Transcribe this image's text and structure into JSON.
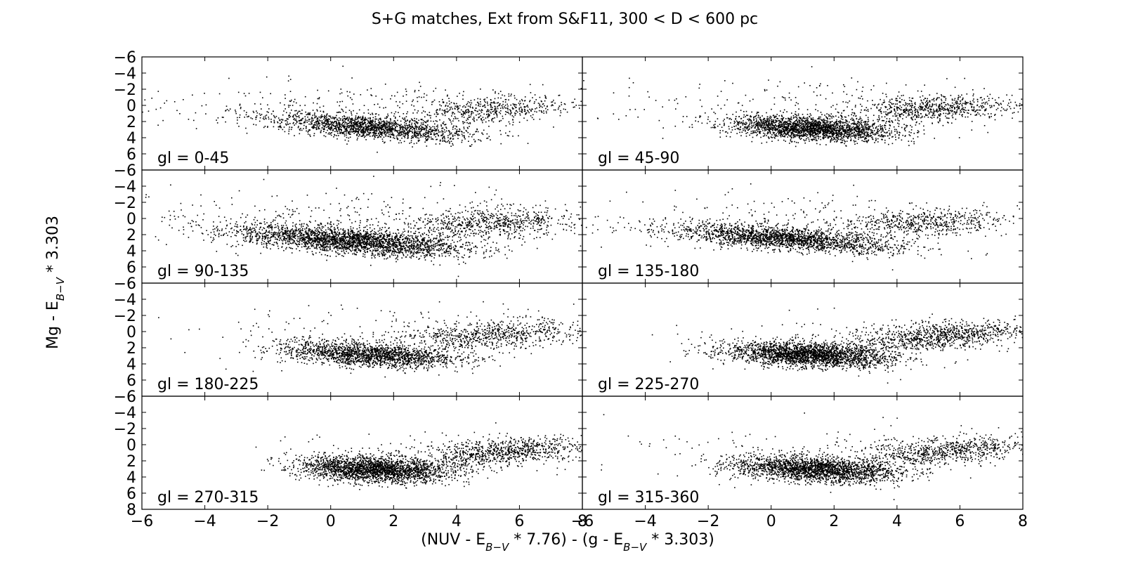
{
  "chart_data": {
    "type": "scatter",
    "title": "S+G matches, Ext from S&F11, 300 < D < 600 pc",
    "xlabel": {
      "a": "(NUV - E",
      "asub": "B−V",
      "b": " * 7.76) - (g - E",
      "bsub": "B−V",
      "c": " * 3.303)"
    },
    "ylabel": {
      "a": "Mg - E",
      "asub": "B−V",
      "b": " * 3.303"
    },
    "xlim": [
      -6,
      8
    ],
    "ylim": [
      8,
      -6
    ],
    "y_inverted": true,
    "xticks": [
      "−6",
      "−4",
      "−2",
      "0",
      "2",
      "4",
      "6",
      "8"
    ],
    "xticks_right": [
      "−6",
      "−4",
      "−2",
      "0",
      "2",
      "4",
      "6",
      "8"
    ],
    "yticks": [
      "−6",
      "−4",
      "−2",
      "0",
      "2",
      "4",
      "6"
    ],
    "yticks_bottom": [
      "−6",
      "−4",
      "−2",
      "0",
      "2",
      "4",
      "6",
      "8"
    ],
    "grid": false,
    "marker_color": "#000000",
    "panels": [
      {
        "label": "gl = 0-45",
        "clusters": [
          {
            "n": 1700,
            "cx": 1.2,
            "cy": 2.6,
            "sx": 1.6,
            "sy": 0.85,
            "rho": 0.55
          },
          {
            "n": 500,
            "cx": 5.0,
            "cy": 0.5,
            "sx": 1.3,
            "sy": 0.9,
            "rho": -0.2
          },
          {
            "n": 250,
            "cx": 0.0,
            "cy": 0.0,
            "sx": 4.0,
            "sy": 1.6,
            "rho": 0.0
          }
        ]
      },
      {
        "label": "gl = 45-90",
        "clusters": [
          {
            "n": 2200,
            "cx": 1.3,
            "cy": 2.8,
            "sx": 1.3,
            "sy": 0.75,
            "rho": 0.35
          },
          {
            "n": 650,
            "cx": 5.2,
            "cy": 0.3,
            "sx": 1.3,
            "sy": 0.8,
            "rho": -0.35
          },
          {
            "n": 250,
            "cx": 1.0,
            "cy": 0.0,
            "sx": 4.0,
            "sy": 1.7,
            "rho": 0.0
          }
        ]
      },
      {
        "label": "gl = 90-135",
        "clusters": [
          {
            "n": 2600,
            "cx": 0.6,
            "cy": 2.7,
            "sx": 1.8,
            "sy": 0.95,
            "rho": 0.55
          },
          {
            "n": 700,
            "cx": 5.0,
            "cy": 0.5,
            "sx": 1.4,
            "sy": 0.95,
            "rho": -0.25
          },
          {
            "n": 300,
            "cx": 0.5,
            "cy": 0.0,
            "sx": 4.2,
            "sy": 1.8,
            "rho": 0.0
          }
        ]
      },
      {
        "label": "gl = 135-180",
        "clusters": [
          {
            "n": 2000,
            "cx": 0.4,
            "cy": 2.4,
            "sx": 1.8,
            "sy": 0.85,
            "rho": 0.6
          },
          {
            "n": 550,
            "cx": 4.8,
            "cy": 0.5,
            "sx": 1.3,
            "sy": 0.8,
            "rho": -0.2
          },
          {
            "n": 250,
            "cx": 0.5,
            "cy": 0.0,
            "sx": 4.0,
            "sy": 1.8,
            "rho": 0.0
          }
        ]
      },
      {
        "label": "gl = 180-225",
        "clusters": [
          {
            "n": 1800,
            "cx": 1.2,
            "cy": 2.8,
            "sx": 1.4,
            "sy": 0.8,
            "rho": 0.4
          },
          {
            "n": 650,
            "cx": 5.2,
            "cy": 0.3,
            "sx": 1.4,
            "sy": 0.9,
            "rho": -0.3
          },
          {
            "n": 200,
            "cx": 2.0,
            "cy": 0.0,
            "sx": 3.6,
            "sy": 1.6,
            "rho": 0.0
          }
        ]
      },
      {
        "label": "gl = 225-270",
        "clusters": [
          {
            "n": 2400,
            "cx": 1.2,
            "cy": 2.8,
            "sx": 1.3,
            "sy": 0.75,
            "rho": 0.3
          },
          {
            "n": 900,
            "cx": 5.3,
            "cy": 0.5,
            "sx": 1.4,
            "sy": 0.9,
            "rho": -0.45
          },
          {
            "n": 150,
            "cx": 3.0,
            "cy": 0.5,
            "sx": 3.0,
            "sy": 1.5,
            "rho": 0.0
          }
        ]
      },
      {
        "label": "gl = 270-315",
        "clusters": [
          {
            "n": 2300,
            "cx": 1.4,
            "cy": 3.0,
            "sx": 1.2,
            "sy": 0.8,
            "rho": 0.25
          },
          {
            "n": 800,
            "cx": 5.5,
            "cy": 0.8,
            "sx": 1.4,
            "sy": 0.9,
            "rho": -0.5
          },
          {
            "n": 150,
            "cx": 3.5,
            "cy": 1.0,
            "sx": 2.8,
            "sy": 1.5,
            "rho": 0.0
          }
        ]
      },
      {
        "label": "gl = 315-360",
        "clusters": [
          {
            "n": 2200,
            "cx": 1.4,
            "cy": 3.0,
            "sx": 1.3,
            "sy": 0.8,
            "rho": 0.3
          },
          {
            "n": 700,
            "cx": 5.5,
            "cy": 0.7,
            "sx": 1.4,
            "sy": 0.9,
            "rho": -0.45
          },
          {
            "n": 180,
            "cx": 2.5,
            "cy": 0.5,
            "sx": 3.5,
            "sy": 1.6,
            "rho": 0.0
          }
        ]
      }
    ]
  }
}
